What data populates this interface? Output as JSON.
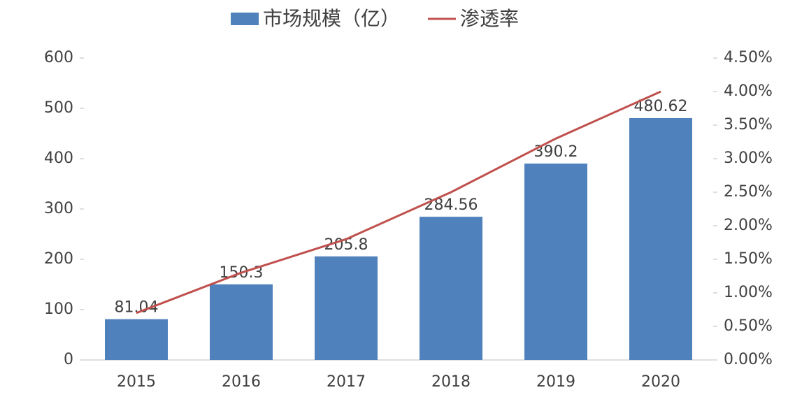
{
  "chart_data": {
    "type": "bar_line",
    "categories": [
      "2015",
      "2016",
      "2017",
      "2018",
      "2019",
      "2020"
    ],
    "series": [
      {
        "name": "市场规模（亿）",
        "color": "#4f81bd",
        "type": "bar",
        "values": [
          81.04,
          150.3,
          205.8,
          284.56,
          390.2,
          480.62
        ]
      },
      {
        "name": "渗透率",
        "color": "#c0504d",
        "type": "line",
        "axis": "y2",
        "values": [
          0.7,
          1.3,
          1.8,
          2.5,
          3.3,
          4.0
        ]
      }
    ],
    "ylim": [
      0,
      600
    ],
    "yticks": [
      0,
      100,
      200,
      300,
      400,
      500,
      600
    ],
    "y2lim": [
      0,
      4.5
    ],
    "y2ticks": [
      {
        "value": 0,
        "label": "0.00%"
      },
      {
        "value": 0.5,
        "label": "0.50%"
      },
      {
        "value": 1,
        "label": "1.00%"
      },
      {
        "value": 1.5,
        "label": "1.50%"
      },
      {
        "value": 2,
        "label": "2.00%"
      },
      {
        "value": 2.5,
        "label": "2.50%"
      },
      {
        "value": 3,
        "label": "3.00%"
      },
      {
        "value": 3.5,
        "label": "3.50%"
      },
      {
        "value": 4,
        "label": "4.00%"
      },
      {
        "value": 4.5,
        "label": "4.50%"
      }
    ],
    "legend": "top"
  }
}
